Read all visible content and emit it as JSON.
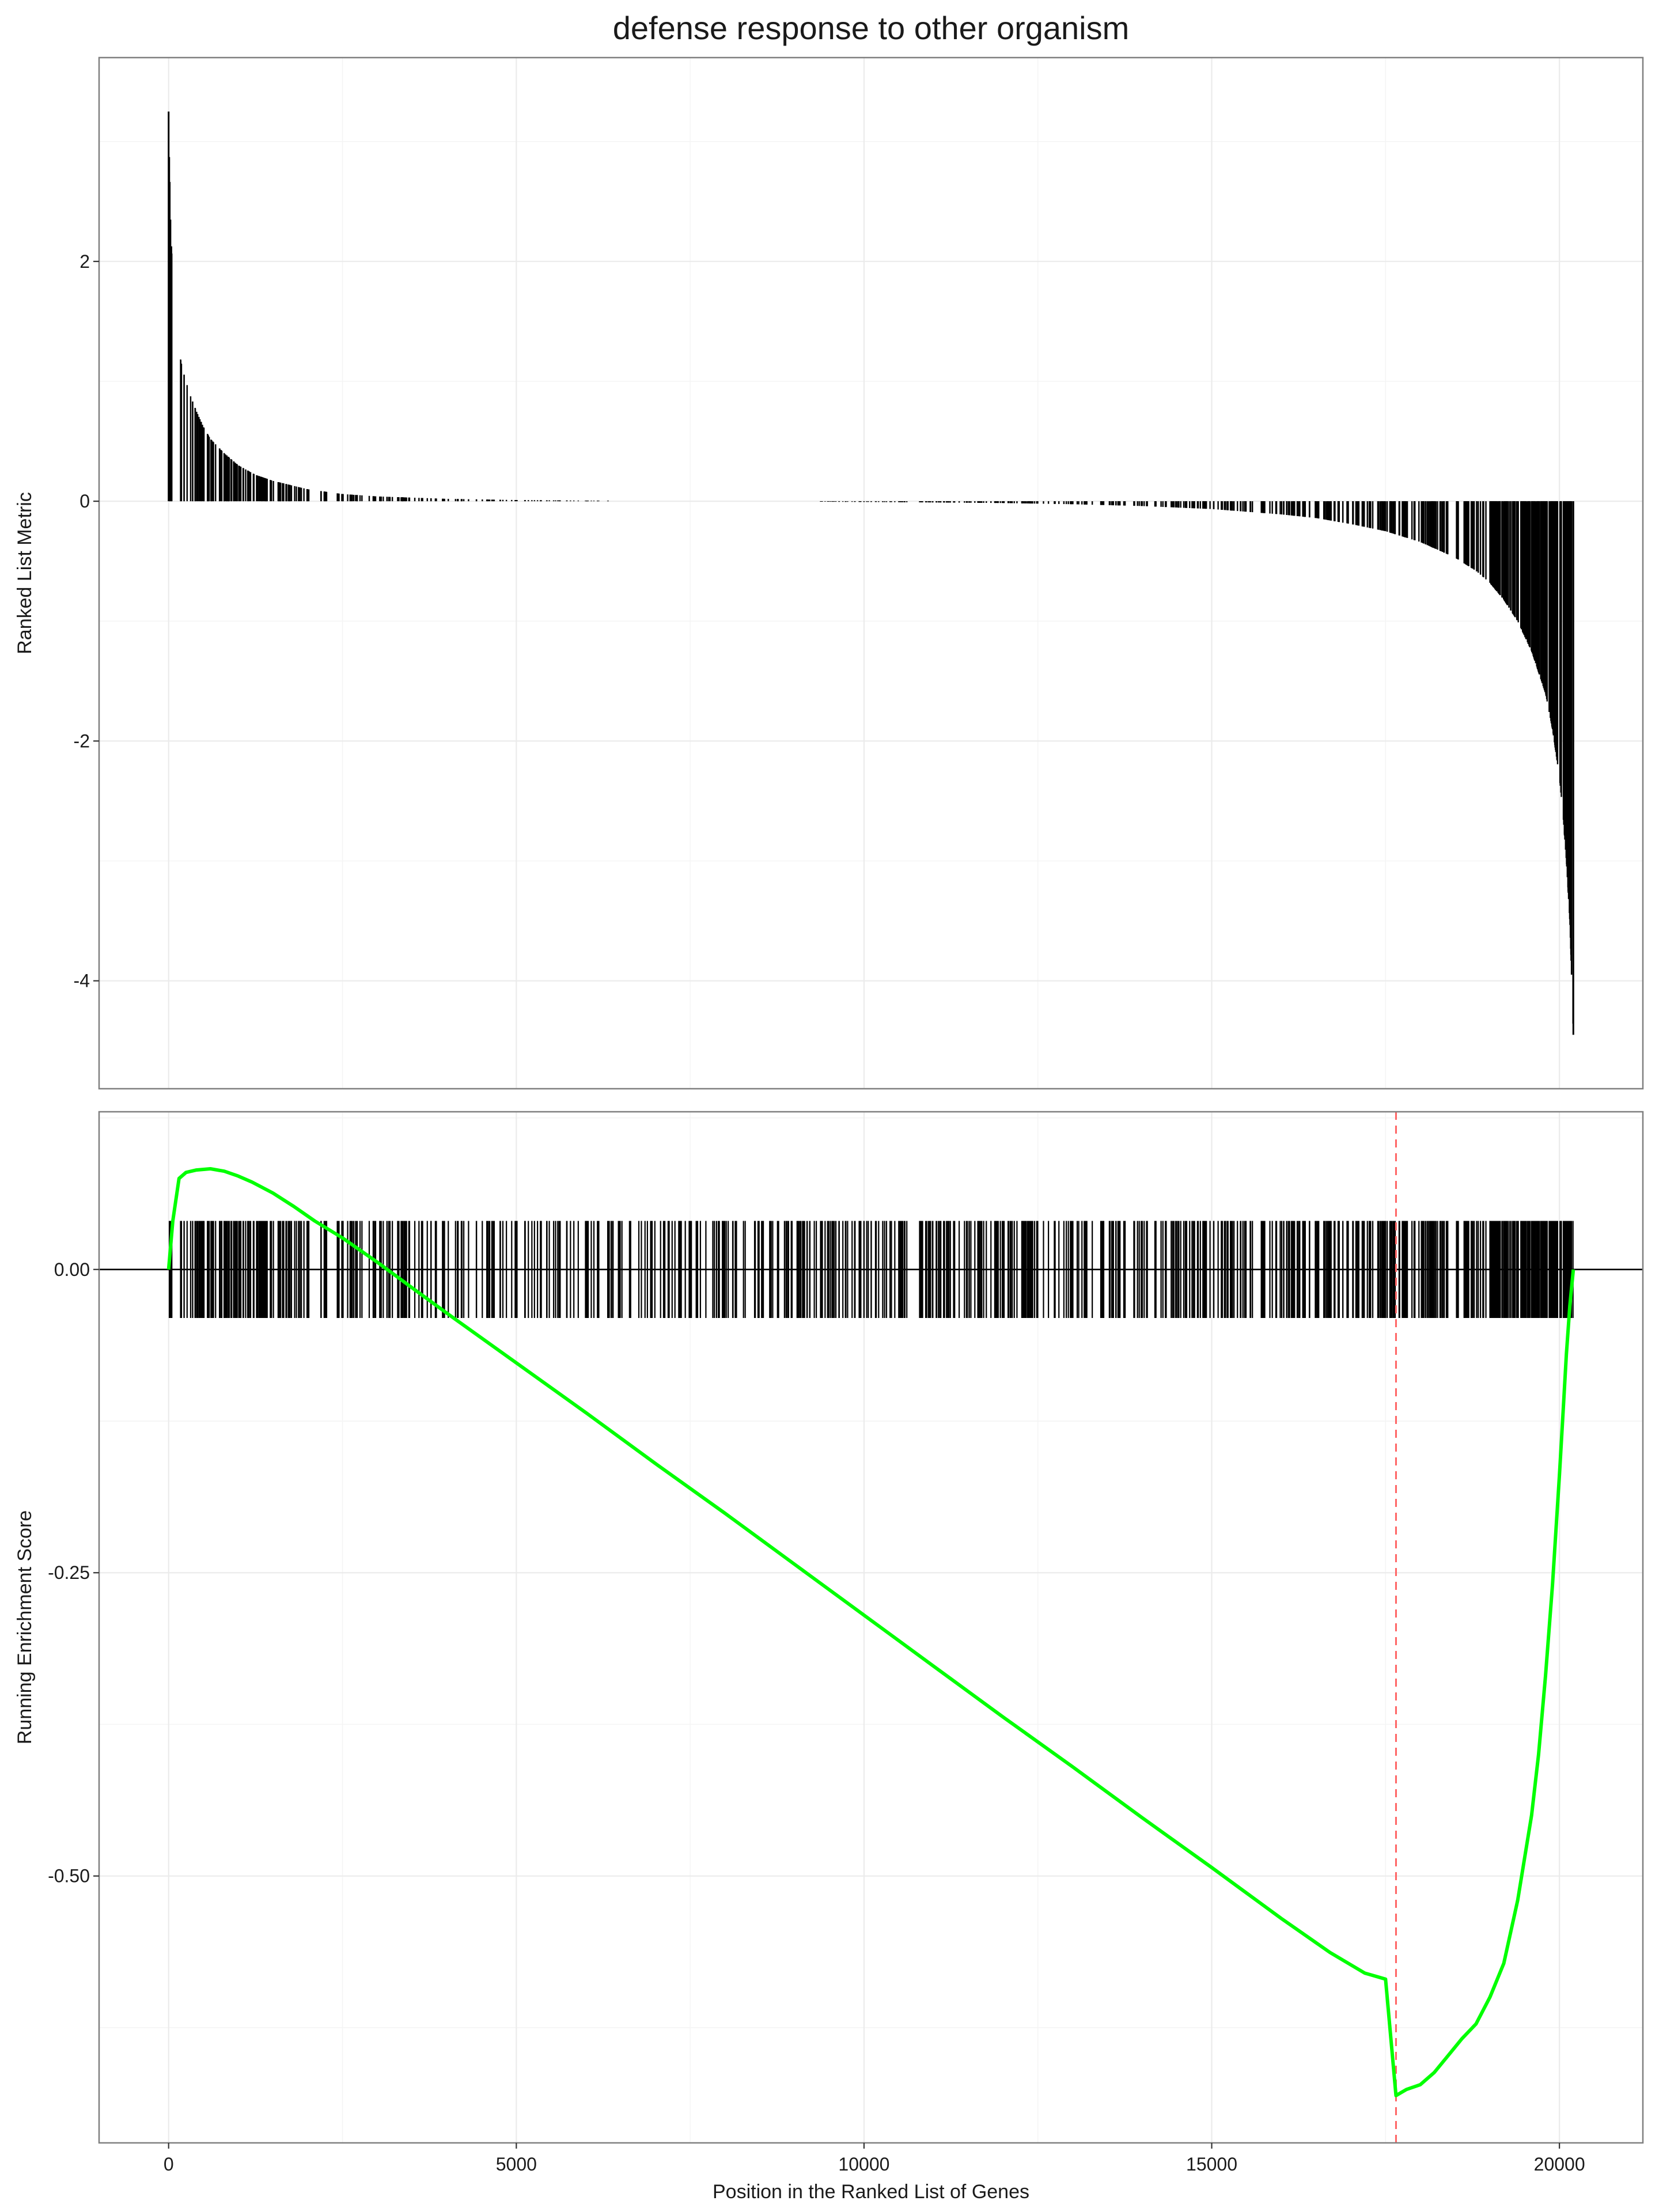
{
  "chart_data": {
    "type": "line",
    "title": "defense response to other organism",
    "xlabel": "Position in the Ranked List of Genes",
    "xlim": [
      -1000,
      21200
    ],
    "x_ticks": [
      0,
      5000,
      10000,
      15000,
      20000
    ],
    "x_tick_labels": [
      "0",
      "5000",
      "10000",
      "15000",
      "20000"
    ],
    "grid": true,
    "panels": [
      {
        "id": "ranked-list-metric",
        "type": "bar",
        "ylabel": "Ranked List Metric",
        "ylim": [
          -4.9,
          3.7
        ],
        "y_ticks": [
          2,
          0,
          -2,
          -4
        ],
        "y_tick_labels": [
          "2",
          "0",
          "-2",
          "-4"
        ],
        "bar_color": "#000000",
        "metric_curve": {
          "x": [
            0,
            10,
            30,
            60,
            100,
            150,
            200,
            300,
            400,
            500,
            600,
            800,
            1000,
            1250,
            1500,
            2000,
            2500,
            3000,
            4000,
            5000,
            6000,
            7000,
            8000,
            9000,
            10000,
            11000,
            12000,
            13000,
            14000,
            15000,
            16000,
            16500,
            17000,
            17500,
            18000,
            18500,
            18800,
            19000,
            19200,
            19400,
            19600,
            19800,
            19900,
            20000,
            20050,
            20100,
            20150,
            20200
          ],
          "y": [
            3.25,
            2.9,
            2.3,
            1.85,
            1.5,
            1.25,
            1.1,
            0.9,
            0.75,
            0.62,
            0.52,
            0.4,
            0.3,
            0.22,
            0.17,
            0.1,
            0.06,
            0.04,
            0.02,
            0.01,
            0.005,
            0.002,
            0.0,
            -0.003,
            -0.006,
            -0.01,
            -0.015,
            -0.025,
            -0.04,
            -0.065,
            -0.11,
            -0.14,
            -0.19,
            -0.25,
            -0.34,
            -0.47,
            -0.58,
            -0.68,
            -0.82,
            -1.0,
            -1.25,
            -1.6,
            -1.9,
            -2.3,
            -2.6,
            -3.0,
            -3.5,
            -4.45
          ]
        }
      },
      {
        "id": "running-enrichment-score",
        "type": "line",
        "ylabel": "Running Enrichment Score",
        "ylim": [
          -0.72,
          0.13
        ],
        "y_ticks": [
          0.0,
          -0.25,
          -0.5
        ],
        "y_tick_labels": [
          "0.00",
          "-0.25",
          "-0.50"
        ],
        "series": [
          {
            "color": "#00ff00",
            "x": [
              0,
              60,
              150,
              250,
              400,
              600,
              800,
              1000,
              1200,
              1500,
              1800,
              2100,
              2500,
              3000,
              3500,
              4000,
              5000,
              6000,
              7000,
              8000,
              9000,
              10000,
              11000,
              12000,
              13000,
              14000,
              15000,
              16000,
              16700,
              17200,
              17500,
              17650,
              17800,
              18000,
              18200,
              18400,
              18600,
              18800,
              19000,
              19200,
              19400,
              19600,
              19700,
              19800,
              19900,
              20000,
              20050,
              20100,
              20150,
              20200
            ],
            "y": [
              0.0,
              0.04,
              0.075,
              0.08,
              0.082,
              0.083,
              0.081,
              0.077,
              0.072,
              0.063,
              0.052,
              0.04,
              0.026,
              0.006,
              -0.015,
              -0.036,
              -0.077,
              -0.118,
              -0.16,
              -0.201,
              -0.243,
              -0.285,
              -0.327,
              -0.369,
              -0.41,
              -0.452,
              -0.493,
              -0.535,
              -0.563,
              -0.58,
              -0.585,
              -0.681,
              -0.676,
              -0.672,
              -0.662,
              -0.648,
              -0.634,
              -0.622,
              -0.6,
              -0.572,
              -0.52,
              -0.45,
              -0.4,
              -0.335,
              -0.26,
              -0.17,
              -0.12,
              -0.07,
              -0.03,
              0.0
            ]
          }
        ],
        "gene_hits": {
          "color": "#000000",
          "ymin": -0.04,
          "ymax": 0.04,
          "density": [
            {
              "from": 0,
              "to": 2000,
              "per_1000": 60
            },
            {
              "from": 2000,
              "to": 4000,
              "per_1000": 35
            },
            {
              "from": 4000,
              "to": 9000,
              "per_1000": 30
            },
            {
              "from": 9000,
              "to": 16000,
              "per_1000": 38
            },
            {
              "from": 16000,
              "to": 19000,
              "per_1000": 55
            },
            {
              "from": 19000,
              "to": 20200,
              "per_1000": 160
            }
          ]
        },
        "zero_line": {
          "y": 0.0,
          "color": "#000000"
        },
        "es_marker": {
          "x": 17650,
          "color": "#ff6464",
          "style": "dashed"
        }
      }
    ]
  }
}
